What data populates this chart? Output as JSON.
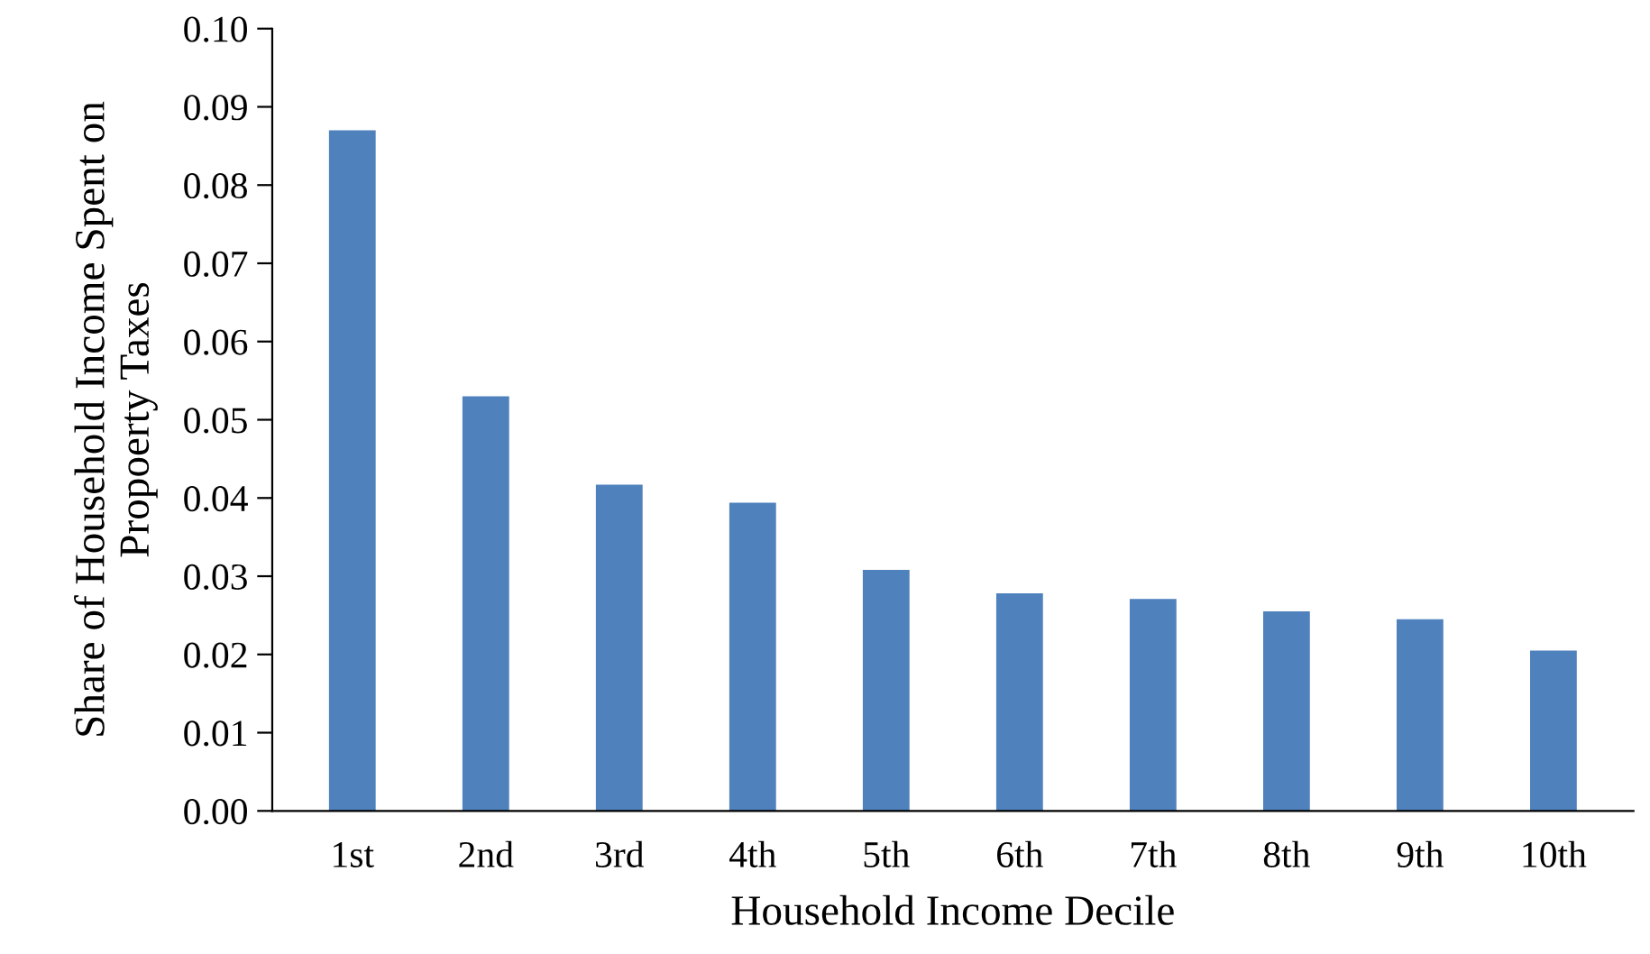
{
  "chart_data": {
    "type": "bar",
    "xlabel": "Household Income Decile",
    "ylabel": "Share of Household Income Spent on\nPropoerty Taxes",
    "categories": [
      "1st",
      "2nd",
      "3rd",
      "4th",
      "5th",
      "6th",
      "7th",
      "8th",
      "9th",
      "10th"
    ],
    "values": [
      0.087,
      0.053,
      0.0417,
      0.0394,
      0.0308,
      0.0278,
      0.0271,
      0.0255,
      0.0245,
      0.0205
    ],
    "color": "#4f81bd",
    "ylim": [
      0,
      0.1
    ],
    "yticks": [
      {
        "value": 0,
        "label": "0.00"
      },
      {
        "value": 0.01,
        "label": "0.01"
      },
      {
        "value": 0.02,
        "label": "0.02"
      },
      {
        "value": 0.03,
        "label": "0.03"
      },
      {
        "value": 0.04,
        "label": "0.04"
      },
      {
        "value": 0.05,
        "label": "0.05"
      },
      {
        "value": 0.06,
        "label": "0.06"
      },
      {
        "value": 0.07,
        "label": "0.07"
      },
      {
        "value": 0.08,
        "label": "0.08"
      },
      {
        "value": 0.09,
        "label": "0.09"
      },
      {
        "value": 0.1,
        "label": "0.10"
      }
    ],
    "grid": false
  }
}
